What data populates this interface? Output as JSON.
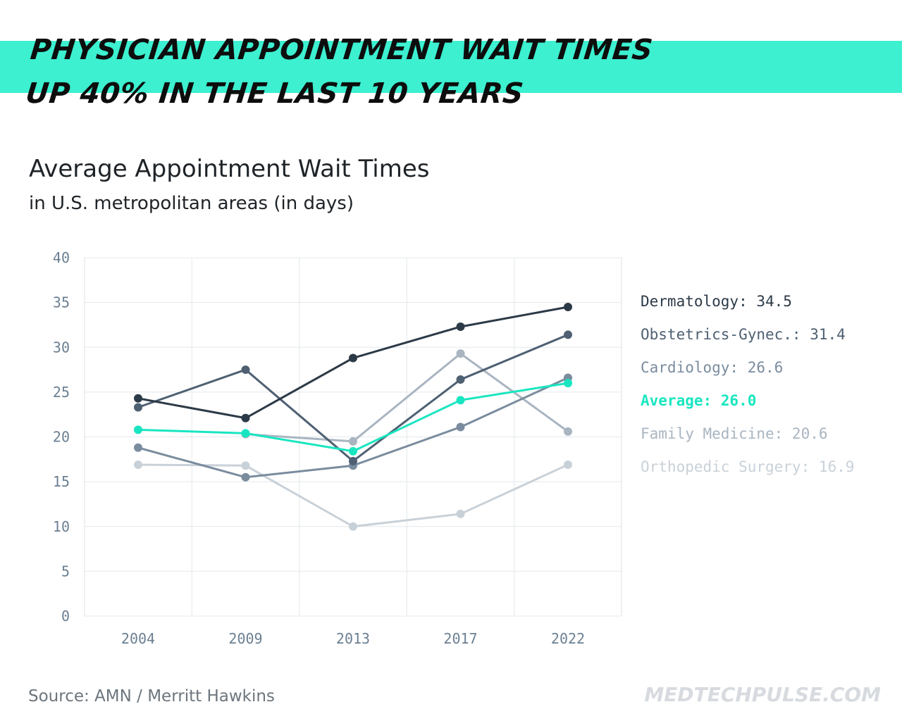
{
  "header": {
    "headline_line1": "PHYSICIAN APPOINTMENT WAIT TIMES",
    "headline_line2": "UP 40% IN THE LAST 10 YEARS",
    "accent_color": "#3cf0d0"
  },
  "footer": {
    "source": "Source: AMN / Merritt Hawkins",
    "brand": "MEDTECHPULSE.COM"
  },
  "chart_data": {
    "type": "line",
    "title": "Average Appointment Wait Times",
    "subtitle": "in U.S. metropolitan areas (in days)",
    "xlabel": "",
    "ylabel": "",
    "categories": [
      "2004",
      "2009",
      "2013",
      "2017",
      "2022"
    ],
    "ylim": [
      0,
      40
    ],
    "yticks": [
      0,
      5,
      10,
      15,
      20,
      25,
      30,
      35,
      40
    ],
    "grid": true,
    "legend_position": "right",
    "series": [
      {
        "name": "Dermatology",
        "label": "Dermatology: 34.5",
        "color": "#2c3a47",
        "values": [
          24.3,
          22.1,
          28.8,
          32.3,
          34.5
        ]
      },
      {
        "name": "Obstetrics-Gynec.",
        "label": "Obstetrics-Gynec.: 31.4",
        "color": "#4e6072",
        "values": [
          23.3,
          27.5,
          17.3,
          26.4,
          31.4
        ]
      },
      {
        "name": "Cardiology",
        "label": "Cardiology: 26.6",
        "color": "#7a8c9e",
        "values": [
          18.8,
          15.5,
          16.8,
          21.1,
          26.6
        ]
      },
      {
        "name": "Average",
        "label": "Average: 26.0",
        "color": "#19e6c1",
        "values": [
          20.8,
          20.4,
          18.4,
          24.1,
          26.0
        ]
      },
      {
        "name": "Family Medicine",
        "label": "Family Medicine: 20.6",
        "color": "#a9b5c1",
        "values": [
          null,
          20.3,
          19.5,
          29.3,
          20.6
        ]
      },
      {
        "name": "Orthopedic Surgery",
        "label": "Orthopedic Surgery: 16.9",
        "color": "#c9d1d8",
        "values": [
          16.9,
          16.8,
          10.0,
          11.4,
          16.9
        ]
      }
    ]
  }
}
